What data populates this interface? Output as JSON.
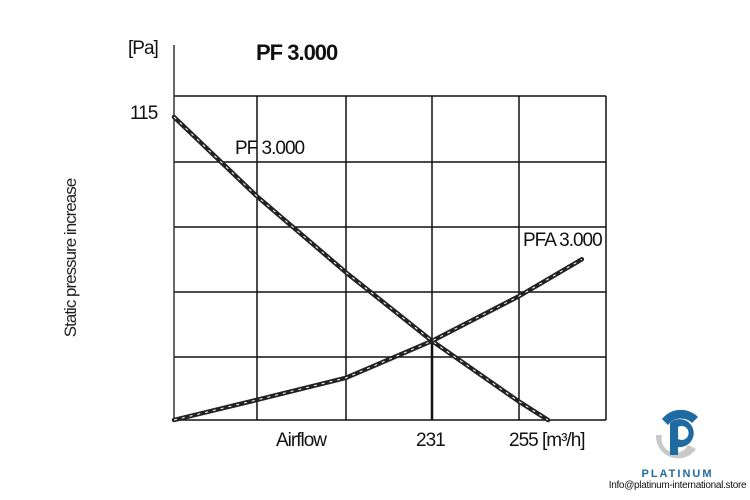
{
  "chart_data": {
    "type": "line",
    "title": "PF 3.000",
    "ylabel": "Static pressure increase",
    "yunit": "[Pa]",
    "xlabel": "Airflow",
    "xunit": "[m³/h]",
    "y_ticks": [
      {
        "value": 115,
        "label": "115"
      }
    ],
    "x_ticks": [
      {
        "value": 231,
        "label": "231"
      },
      {
        "value": 255,
        "label": "255 [m³/h]"
      }
    ],
    "ylim": [
      0,
      123
    ],
    "grid": true,
    "operating_point": {
      "x": 231,
      "y": 30
    },
    "series": [
      {
        "name": "PF 3.000",
        "x": [
          0,
          74,
          154,
          231,
          249,
          255
        ],
        "y": [
          115,
          85,
          56,
          30,
          7,
          0
        ]
      },
      {
        "name": "PFA 3.000",
        "x": [
          0,
          74,
          154,
          231,
          249,
          262
        ],
        "y": [
          0,
          7.6,
          16,
          30,
          47,
          61
        ]
      }
    ]
  },
  "logo": {
    "brand": "PLATINUM",
    "email": "Info@platinum-international.store",
    "color": "#1f6aa0"
  }
}
